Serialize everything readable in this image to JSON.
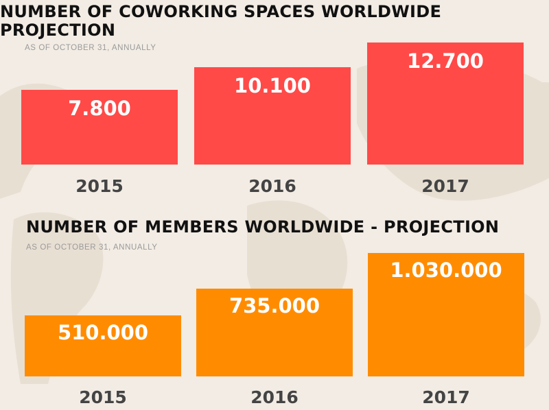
{
  "colors": {
    "background": "#f2ece4",
    "map": "#e8dfd3",
    "chart1_bar": "#ff4a48",
    "chart2_bar": "#ff8c00",
    "title_text": "#111111",
    "subtitle_text": "#9a9a9a",
    "year_text": "#444444"
  },
  "chart_data": [
    {
      "type": "bar",
      "title": "NUMBER OF COWORKING SPACES WORLDWIDE PROJECTION",
      "subtitle": "AS OF OCTOBER 31, ANNUALLY",
      "categories": [
        "2015",
        "2016",
        "2017"
      ],
      "values": [
        7800,
        10100,
        12700
      ],
      "value_labels": [
        "7.800",
        "10.100",
        "12.700"
      ],
      "ylim": [
        0,
        12700
      ],
      "grid": false,
      "legend": "none"
    },
    {
      "type": "bar",
      "title": "NUMBER OF MEMBERS WORLDWIDE - PROJECTION",
      "subtitle": "AS OF OCTOBER 31, ANNUALLY",
      "categories": [
        "2015",
        "2016",
        "2017"
      ],
      "values": [
        510000,
        735000,
        1030000
      ],
      "value_labels": [
        "510.000",
        "735.000",
        "1.030.000"
      ],
      "ylim": [
        0,
        1030000
      ],
      "grid": false,
      "legend": "none"
    }
  ]
}
